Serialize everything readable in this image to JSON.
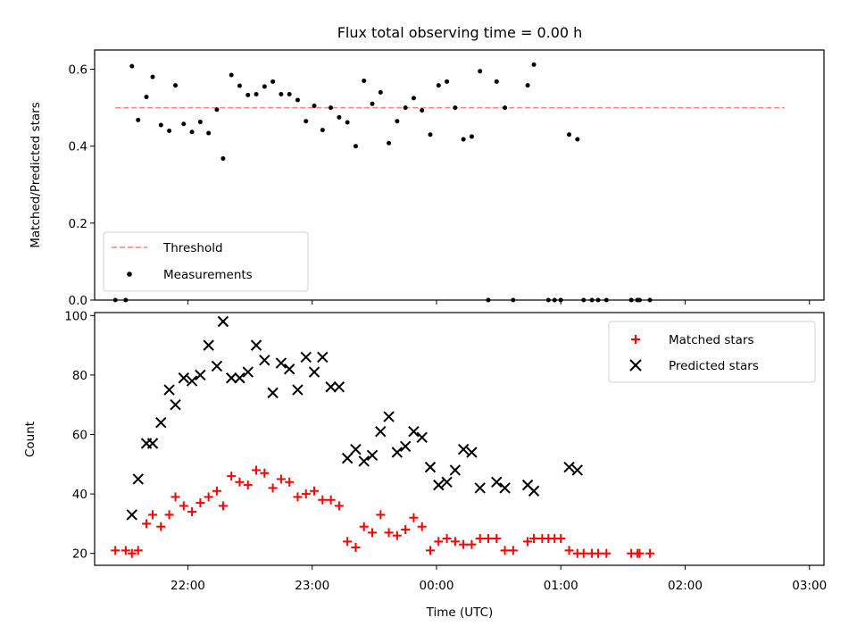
{
  "title": "Flux total observing time = 0.00 h",
  "chart_data": [
    {
      "type": "scatter",
      "panel": "top",
      "title": "Flux total observing time = 0.00 h",
      "xlabel": "",
      "ylabel": "Matched/Predicted stars",
      "ylim": [
        0,
        0.65
      ],
      "yticks": [
        0.0,
        0.2,
        0.4,
        0.6
      ],
      "ytick_labels": [
        "0.0",
        "0.2",
        "0.4",
        "0.6"
      ],
      "legend": {
        "placement": "lower-left",
        "entries": [
          "Threshold",
          "Measurements"
        ]
      },
      "threshold": {
        "name": "Threshold",
        "value": 0.5,
        "x_start": "21:25",
        "x_end": "02:48",
        "color": "#ff7f7f",
        "style": "dashed"
      },
      "series": [
        {
          "name": "Measurements",
          "color": "#000000",
          "marker": "dot",
          "points": [
            [
              "21:25",
              0.0
            ],
            [
              "21:30",
              0.0
            ],
            [
              "21:33",
              0.608
            ],
            [
              "21:36",
              0.468
            ],
            [
              "21:40",
              0.528
            ],
            [
              "21:43",
              0.58
            ],
            [
              "21:47",
              0.455
            ],
            [
              "21:51",
              0.44
            ],
            [
              "21:54",
              0.558
            ],
            [
              "21:58",
              0.458
            ],
            [
              "22:02",
              0.437
            ],
            [
              "22:06",
              0.463
            ],
            [
              "22:10",
              0.434
            ],
            [
              "22:14",
              0.495
            ],
            [
              "22:17",
              0.368
            ],
            [
              "22:21",
              0.585
            ],
            [
              "22:25",
              0.557
            ],
            [
              "22:29",
              0.533
            ],
            [
              "22:33",
              0.535
            ],
            [
              "22:37",
              0.555
            ],
            [
              "22:41",
              0.568
            ],
            [
              "22:45",
              0.535
            ],
            [
              "22:49",
              0.535
            ],
            [
              "22:53",
              0.52
            ],
            [
              "22:57",
              0.465
            ],
            [
              "23:01",
              0.505
            ],
            [
              "23:05",
              0.442
            ],
            [
              "23:09",
              0.5
            ],
            [
              "23:13",
              0.475
            ],
            [
              "23:17",
              0.462
            ],
            [
              "23:21",
              0.4
            ],
            [
              "23:25",
              0.57
            ],
            [
              "23:29",
              0.51
            ],
            [
              "23:33",
              0.54
            ],
            [
              "23:37",
              0.408
            ],
            [
              "23:41",
              0.465
            ],
            [
              "23:45",
              0.5
            ],
            [
              "23:49",
              0.525
            ],
            [
              "23:53",
              0.493
            ],
            [
              "23:57",
              0.43
            ],
            [
              "00:01",
              0.558
            ],
            [
              "00:05",
              0.568
            ],
            [
              "00:09",
              0.5
            ],
            [
              "00:13",
              0.418
            ],
            [
              "00:17",
              0.425
            ],
            [
              "00:21",
              0.595
            ],
            [
              "00:25",
              0.0
            ],
            [
              "00:29",
              0.568
            ],
            [
              "00:33",
              0.5
            ],
            [
              "00:37",
              0.0
            ],
            [
              "00:44",
              0.558
            ],
            [
              "00:47",
              0.612
            ],
            [
              "00:54",
              0.0
            ],
            [
              "00:57",
              0.0
            ],
            [
              "01:00",
              0.0
            ],
            [
              "01:04",
              0.43
            ],
            [
              "01:08",
              0.418
            ],
            [
              "01:11",
              0.0
            ],
            [
              "01:15",
              0.0
            ],
            [
              "01:18",
              0.0
            ],
            [
              "01:22",
              0.0
            ],
            [
              "01:34",
              0.0
            ],
            [
              "01:37",
              0.0
            ],
            [
              "01:38",
              0.0
            ],
            [
              "01:43",
              0.0
            ]
          ]
        }
      ]
    },
    {
      "type": "scatter",
      "panel": "bottom",
      "xlabel": "Time (UTC)",
      "ylabel": "Count",
      "ylim": [
        16,
        101
      ],
      "yticks": [
        20,
        40,
        60,
        80,
        100
      ],
      "ytick_labels": [
        "20",
        "40",
        "60",
        "80",
        "100"
      ],
      "xtick_labels": [
        "22:00",
        "23:00",
        "00:00",
        "01:00",
        "02:00",
        "03:00"
      ],
      "x_range": [
        "21:15",
        "03:07"
      ],
      "legend": {
        "placement": "upper-right",
        "entries": [
          "Matched stars",
          "Predicted stars"
        ]
      },
      "series": [
        {
          "name": "Matched stars",
          "color": "#ff0000",
          "marker": "plus",
          "points": [
            [
              "21:25",
              21
            ],
            [
              "21:30",
              21
            ],
            [
              "21:33",
              20
            ],
            [
              "21:36",
              21
            ],
            [
              "21:40",
              30
            ],
            [
              "21:43",
              33
            ],
            [
              "21:47",
              29
            ],
            [
              "21:51",
              33
            ],
            [
              "21:54",
              39
            ],
            [
              "21:58",
              36
            ],
            [
              "22:02",
              34
            ],
            [
              "22:06",
              37
            ],
            [
              "22:10",
              39
            ],
            [
              "22:14",
              41
            ],
            [
              "22:17",
              36
            ],
            [
              "22:21",
              46
            ],
            [
              "22:25",
              44
            ],
            [
              "22:29",
              43
            ],
            [
              "22:33",
              48
            ],
            [
              "22:37",
              47
            ],
            [
              "22:41",
              42
            ],
            [
              "22:45",
              45
            ],
            [
              "22:49",
              44
            ],
            [
              "22:53",
              39
            ],
            [
              "22:57",
              40
            ],
            [
              "23:01",
              41
            ],
            [
              "23:05",
              38
            ],
            [
              "23:09",
              38
            ],
            [
              "23:13",
              36
            ],
            [
              "23:17",
              24
            ],
            [
              "23:21",
              22
            ],
            [
              "23:25",
              29
            ],
            [
              "23:29",
              27
            ],
            [
              "23:33",
              33
            ],
            [
              "23:37",
              27
            ],
            [
              "23:41",
              26
            ],
            [
              "23:45",
              28
            ],
            [
              "23:49",
              32
            ],
            [
              "23:53",
              29
            ],
            [
              "23:57",
              21
            ],
            [
              "00:01",
              24
            ],
            [
              "00:05",
              25
            ],
            [
              "00:09",
              24
            ],
            [
              "00:13",
              23
            ],
            [
              "00:17",
              23
            ],
            [
              "00:21",
              25
            ],
            [
              "00:25",
              25
            ],
            [
              "00:29",
              25
            ],
            [
              "00:33",
              21
            ],
            [
              "00:37",
              21
            ],
            [
              "00:44",
              24
            ],
            [
              "00:47",
              25
            ],
            [
              "00:51",
              25
            ],
            [
              "00:54",
              25
            ],
            [
              "00:57",
              25
            ],
            [
              "01:00",
              25
            ],
            [
              "01:04",
              21
            ],
            [
              "01:08",
              20
            ],
            [
              "01:11",
              20
            ],
            [
              "01:15",
              20
            ],
            [
              "01:18",
              20
            ],
            [
              "01:22",
              20
            ],
            [
              "01:34",
              20
            ],
            [
              "01:37",
              20
            ],
            [
              "01:38",
              20
            ],
            [
              "01:43",
              20
            ]
          ]
        },
        {
          "name": "Predicted stars",
          "color": "#000000",
          "marker": "x",
          "points": [
            [
              "21:33",
              33
            ],
            [
              "21:36",
              45
            ],
            [
              "21:40",
              57
            ],
            [
              "21:43",
              57
            ],
            [
              "21:47",
              64
            ],
            [
              "21:51",
              75
            ],
            [
              "21:54",
              70
            ],
            [
              "21:58",
              79
            ],
            [
              "22:02",
              78
            ],
            [
              "22:06",
              80
            ],
            [
              "22:10",
              90
            ],
            [
              "22:14",
              83
            ],
            [
              "22:17",
              98
            ],
            [
              "22:21",
              79
            ],
            [
              "22:25",
              79
            ],
            [
              "22:29",
              81
            ],
            [
              "22:33",
              90
            ],
            [
              "22:37",
              85
            ],
            [
              "22:41",
              74
            ],
            [
              "22:45",
              84
            ],
            [
              "22:49",
              82
            ],
            [
              "22:53",
              75
            ],
            [
              "22:57",
              86
            ],
            [
              "23:01",
              81
            ],
            [
              "23:05",
              86
            ],
            [
              "23:09",
              76
            ],
            [
              "23:13",
              76
            ],
            [
              "23:17",
              52
            ],
            [
              "23:21",
              55
            ],
            [
              "23:25",
              51
            ],
            [
              "23:29",
              53
            ],
            [
              "23:33",
              61
            ],
            [
              "23:37",
              66
            ],
            [
              "23:41",
              54
            ],
            [
              "23:45",
              56
            ],
            [
              "23:49",
              61
            ],
            [
              "23:53",
              59
            ],
            [
              "23:57",
              49
            ],
            [
              "00:01",
              43
            ],
            [
              "00:05",
              44
            ],
            [
              "00:09",
              48
            ],
            [
              "00:13",
              55
            ],
            [
              "00:17",
              54
            ],
            [
              "00:21",
              42
            ],
            [
              "00:29",
              44
            ],
            [
              "00:33",
              42
            ],
            [
              "00:44",
              43
            ],
            [
              "00:47",
              41
            ],
            [
              "01:04",
              49
            ],
            [
              "01:08",
              48
            ]
          ]
        }
      ]
    }
  ]
}
